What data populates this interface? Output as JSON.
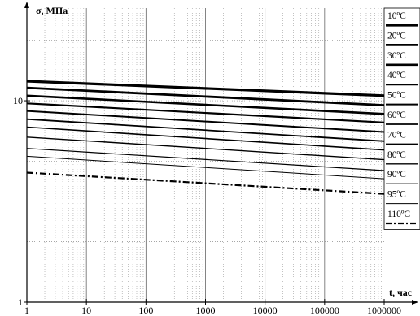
{
  "chart_data": {
    "type": "line",
    "title": "",
    "xlabel": "t, час",
    "ylabel": "σ, МПа",
    "x_scale": "log",
    "y_scale": "log",
    "xlim": [
      1,
      1000000
    ],
    "ylim": [
      1,
      30
    ],
    "x_ticks": [
      "1",
      "10",
      "100",
      "1000",
      "10000",
      "100000",
      "1000000"
    ],
    "y_ticks": [
      "1",
      "10"
    ],
    "grid": true,
    "legend": "right",
    "series": [
      {
        "name": "10ºC",
        "x": [
          1,
          1000000
        ],
        "y": [
          12.5,
          10.6
        ],
        "style": "solid",
        "width": 3.2
      },
      {
        "name": "20ºC",
        "x": [
          1,
          1000000
        ],
        "y": [
          11.6,
          9.5
        ],
        "style": "solid",
        "width": 2.8
      },
      {
        "name": "30ºC",
        "x": [
          1,
          1000000
        ],
        "y": [
          10.6,
          8.6
        ],
        "style": "solid",
        "width": 2.6
      },
      {
        "name": "40ºC",
        "x": [
          1,
          1000000
        ],
        "y": [
          9.7,
          7.8
        ],
        "style": "solid",
        "width": 2.2
      },
      {
        "name": "50ºC",
        "x": [
          1,
          1000000
        ],
        "y": [
          8.9,
          7.0
        ],
        "style": "solid",
        "width": 2.0
      },
      {
        "name": "60ºC",
        "x": [
          1,
          1000000
        ],
        "y": [
          8.1,
          6.3
        ],
        "style": "solid",
        "width": 1.8
      },
      {
        "name": "70ºC",
        "x": [
          1,
          1000000
        ],
        "y": [
          7.4,
          5.7
        ],
        "style": "solid",
        "width": 1.6
      },
      {
        "name": "80ºC",
        "x": [
          1,
          1000000
        ],
        "y": [
          6.6,
          5.1
        ],
        "style": "solid",
        "width": 1.4
      },
      {
        "name": "90ºC",
        "x": [
          1,
          1000000
        ],
        "y": [
          5.8,
          4.5
        ],
        "style": "solid",
        "width": 1.2
      },
      {
        "name": "95ºC",
        "x": [
          1,
          1000000
        ],
        "y": [
          5.3,
          4.1
        ],
        "style": "solid",
        "width": 1.0
      },
      {
        "name": "110ºC",
        "x": [
          1,
          1000000
        ],
        "y": [
          4.4,
          3.45
        ],
        "style": "dashdot",
        "width": 2.2
      }
    ]
  }
}
